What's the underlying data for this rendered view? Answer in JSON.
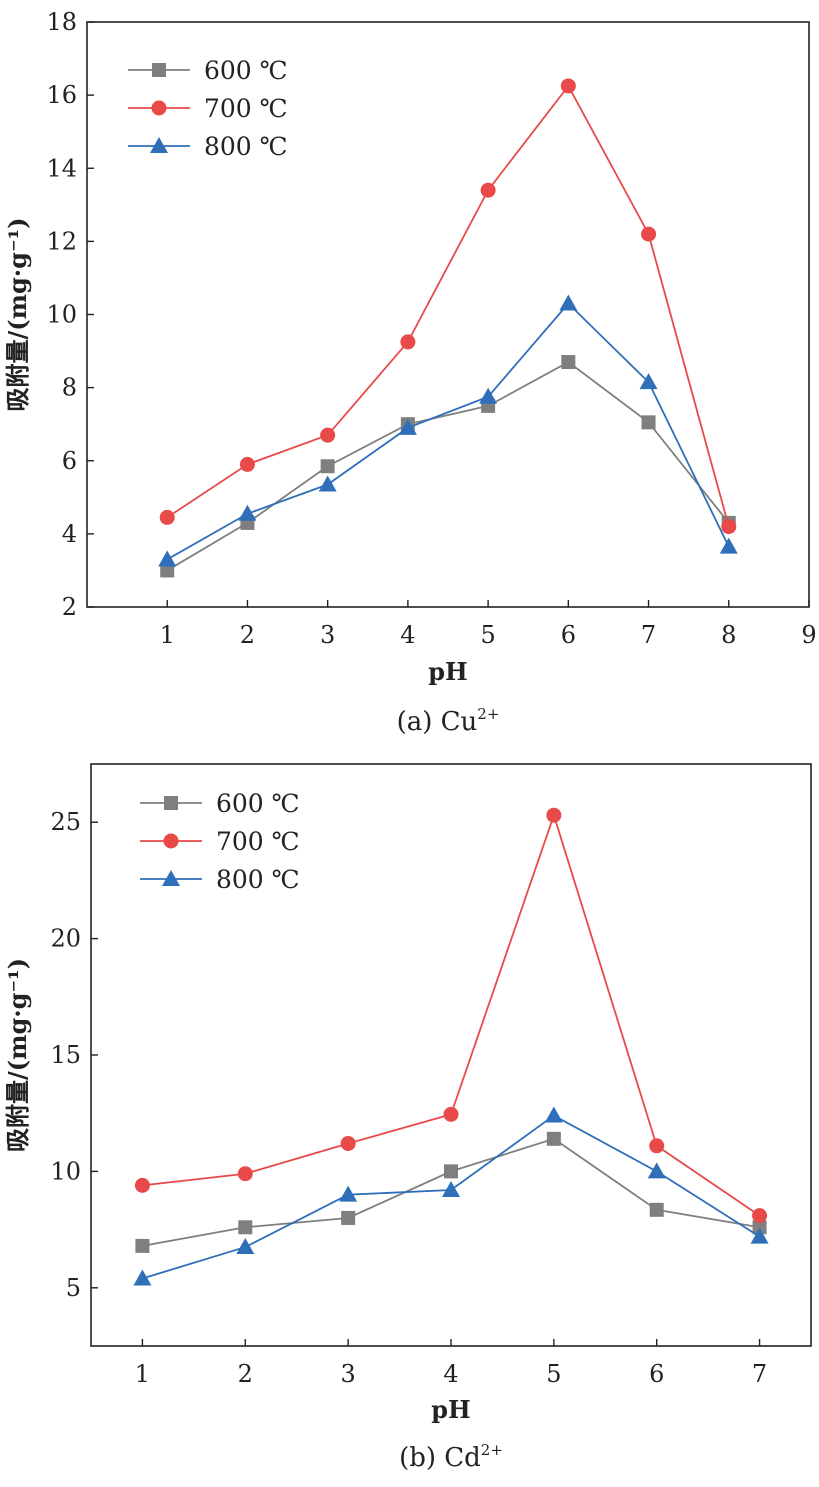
{
  "figure": {
    "colors": {
      "series_600": "#7f7f7f",
      "series_700": "#e84a4a",
      "series_800": "#2f6fba"
    }
  },
  "chart_data": [
    {
      "type": "line",
      "caption": "(a) Cu",
      "caption_sup": "2+",
      "xlabel": "pH",
      "ylabel": "吸附量/(mg·g⁻¹)",
      "xlim": [
        0,
        9
      ],
      "ylim": [
        2,
        18
      ],
      "xticks": [
        1,
        2,
        3,
        4,
        5,
        6,
        7,
        8,
        9
      ],
      "yticks": [
        2,
        4,
        6,
        8,
        10,
        12,
        14,
        16,
        18
      ],
      "legend_position": "top-left",
      "grid": false,
      "x": [
        1,
        2,
        3,
        4,
        5,
        6,
        7,
        8
      ],
      "series": [
        {
          "name": "600 ℃",
          "marker": "square",
          "color": "#7f7f7f",
          "values": [
            3.0,
            4.3,
            5.85,
            7.0,
            7.5,
            8.7,
            7.05,
            4.3
          ]
        },
        {
          "name": "700 ℃",
          "marker": "circle",
          "color": "#e84a4a",
          "values": [
            4.45,
            5.9,
            6.7,
            9.25,
            13.4,
            16.25,
            12.2,
            4.2
          ]
        },
        {
          "name": "800 ℃",
          "marker": "triangle",
          "color": "#2f6fba",
          "values": [
            3.3,
            4.55,
            5.35,
            6.9,
            7.75,
            10.3,
            8.15,
            3.65
          ]
        }
      ]
    },
    {
      "type": "line",
      "caption": "(b) Cd",
      "caption_sup": "2+",
      "xlabel": "pH",
      "ylabel": "吸附量/(mg·g⁻¹)",
      "xlim": [
        0.5,
        7.5
      ],
      "ylim": [
        2.5,
        27.5
      ],
      "xticks": [
        1,
        2,
        3,
        4,
        5,
        6,
        7
      ],
      "yticks": [
        5,
        10,
        15,
        20,
        25
      ],
      "legend_position": "top-left",
      "grid": false,
      "x": [
        1,
        2,
        3,
        4,
        5,
        6,
        7
      ],
      "series": [
        {
          "name": "600 ℃",
          "marker": "square",
          "color": "#7f7f7f",
          "values": [
            6.8,
            7.6,
            8.0,
            10.0,
            11.4,
            8.35,
            7.6
          ]
        },
        {
          "name": "700 ℃",
          "marker": "circle",
          "color": "#e84a4a",
          "values": [
            9.4,
            9.9,
            11.2,
            12.45,
            25.3,
            11.1,
            8.1
          ]
        },
        {
          "name": "800 ℃",
          "marker": "triangle",
          "color": "#2f6fba",
          "values": [
            5.4,
            6.75,
            9.0,
            9.2,
            12.4,
            10.0,
            7.2
          ]
        }
      ]
    }
  ]
}
